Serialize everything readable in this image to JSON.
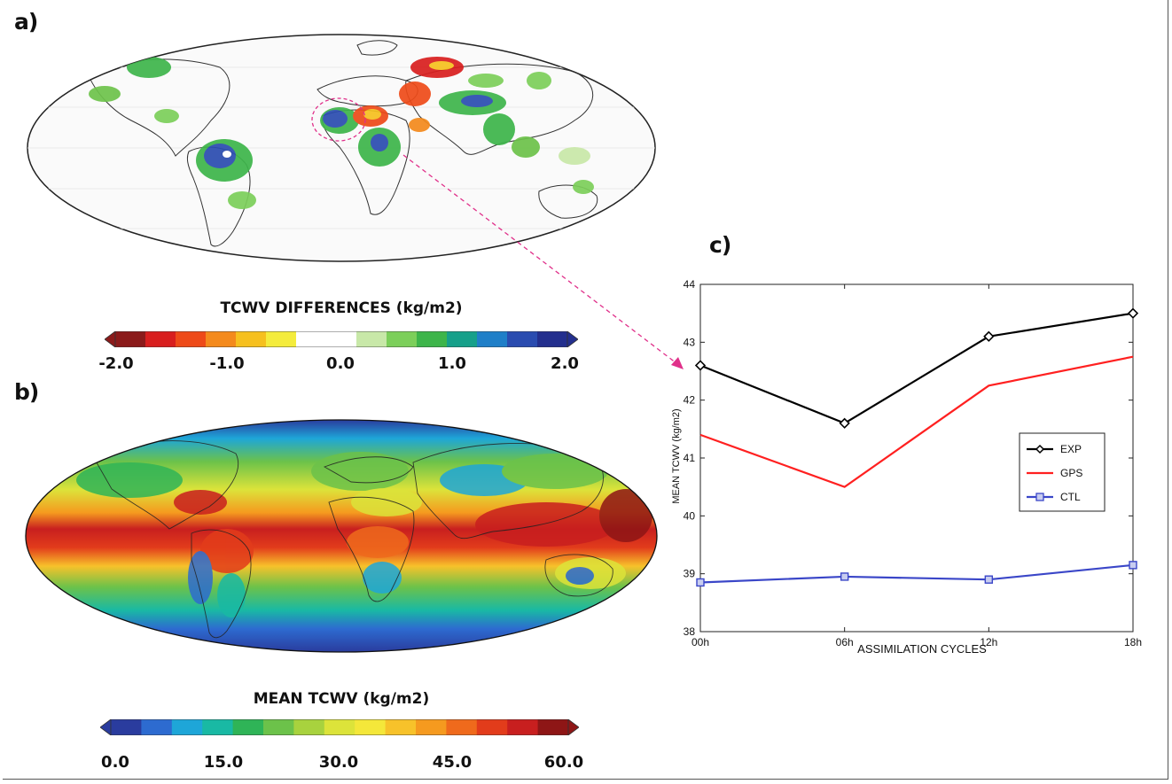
{
  "panels": {
    "a_label": "a)",
    "b_label": "b)",
    "c_label": "c)"
  },
  "colorbar_a": {
    "title": "TCWV DIFFERENCES (kg/m2)",
    "ticks": [
      "-2.0",
      "-1.0",
      "0.0",
      "1.0",
      "2.0"
    ],
    "colors": [
      "#8b1a1a",
      "#d81e1e",
      "#ee4a18",
      "#f48a1c",
      "#f6c01e",
      "#f4ec3c",
      "#ffffff",
      "#ffffff",
      "#c8e8a8",
      "#7ccf5a",
      "#3db54a",
      "#16a08a",
      "#1f7fc8",
      "#2a4cb0",
      "#232f8e"
    ]
  },
  "colorbar_b": {
    "title": "MEAN TCWV (kg/m2)",
    "ticks": [
      "0.0",
      "15.0",
      "30.0",
      "45.0",
      "60.0"
    ],
    "colors": [
      "#2a3c9e",
      "#2d6bd0",
      "#1ea6d8",
      "#19b9a4",
      "#2fb457",
      "#6cc24a",
      "#a8d23e",
      "#dce33a",
      "#f4e73a",
      "#f7c22a",
      "#f59a1f",
      "#ef6a1c",
      "#e23c1b",
      "#c81f1f",
      "#8e1616"
    ]
  },
  "chart_data": {
    "type": "line",
    "categories": [
      "00h",
      "06h",
      "12h",
      "18h"
    ],
    "series": [
      {
        "name": "EXP",
        "values": [
          42.6,
          41.6,
          43.1,
          43.5
        ],
        "color": "#000000",
        "marker": "diamond"
      },
      {
        "name": "GPS",
        "values": [
          41.4,
          40.5,
          42.25,
          42.75
        ],
        "color": "#ff2020",
        "marker": "none"
      },
      {
        "name": "CTL",
        "values": [
          38.85,
          38.95,
          38.9,
          39.15
        ],
        "color": "#3a46c8",
        "marker": "square"
      }
    ],
    "yticks": [
      "38",
      "39",
      "40",
      "41",
      "42",
      "43",
      "44"
    ],
    "ylim": [
      38,
      44
    ],
    "xlabel": "ASSIMILATION CYCLES",
    "ylabel": "MEAN TCWV (kg/m2)",
    "legend_position": "center-right"
  }
}
